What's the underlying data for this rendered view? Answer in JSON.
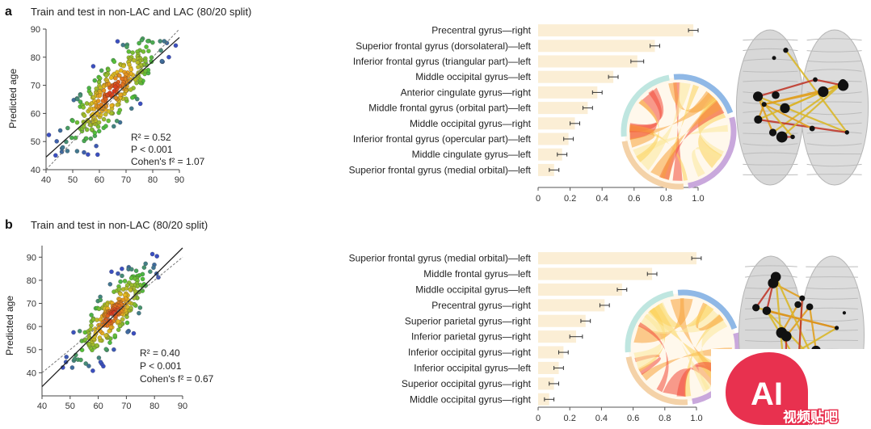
{
  "chart_data": [
    {
      "type": "scatter",
      "panel": "a",
      "title": "Train and test in non-LAC and LAC (80/20 split)",
      "ylabel": "Predicted age",
      "xlabel": "",
      "xlim": [
        40,
        90
      ],
      "ylim": [
        40,
        90
      ],
      "xticks": [
        40,
        50,
        60,
        70,
        80,
        90
      ],
      "yticks": [
        40,
        50,
        60,
        70,
        80,
        90
      ],
      "r2_label": "R² = 0.52",
      "p_label": "P < 0.001",
      "cohen_label": "Cohen's f² = 1.07",
      "fit": {
        "slope": 0.85,
        "intercept": 10.5
      },
      "n_points": 320,
      "center": [
        65,
        68
      ],
      "spread": [
        8.5,
        9.5
      ],
      "seed": 11
    },
    {
      "type": "bar",
      "panel": "a",
      "categories": [
        "Precentral gyrus—right",
        "Superior frontal gyrus (dorsolateral)—left",
        "Inferior frontal gyrus (triangular part)—left",
        "Middle occipital gyrus—left",
        "Anterior cingulate gyrus—right",
        "Middle frontal gyrus (orbital part)—left",
        "Middle occipital gyrus—right",
        "Inferior frontal gyrus (opercular part)—left",
        "Middle cingulate gyrus—left",
        "Superior frontal gyrus (medial orbital)—left"
      ],
      "values": [
        0.97,
        0.73,
        0.62,
        0.47,
        0.37,
        0.31,
        0.23,
        0.19,
        0.15,
        0.1
      ],
      "errors": [
        0.03,
        0.03,
        0.04,
        0.03,
        0.03,
        0.03,
        0.03,
        0.03,
        0.03,
        0.03
      ],
      "xlim": [
        0,
        1.0
      ],
      "xticks": [
        "0",
        "0.2",
        "0.4",
        "0.6",
        "0.8",
        "1.0"
      ]
    },
    {
      "type": "scatter",
      "panel": "b",
      "title": "Train and test in non-LAC (80/20 split)",
      "ylabel": "Predicted age",
      "xlabel": "",
      "xlim": [
        40,
        90
      ],
      "ylim": [
        30,
        95
      ],
      "xticks": [
        40,
        50,
        60,
        70,
        80,
        90
      ],
      "yticks": [
        40,
        50,
        60,
        70,
        80,
        90
      ],
      "r2_label": "R² = 0.40",
      "p_label": "P < 0.001",
      "cohen_label": "Cohen's f² = 0.67",
      "fit": {
        "slope": 1.2,
        "intercept": -14
      },
      "n_points": 260,
      "center": [
        65,
        65
      ],
      "spread": [
        6.5,
        10
      ],
      "seed": 23
    },
    {
      "type": "bar",
      "panel": "b",
      "categories": [
        "Superior frontal gyrus (medial orbital)—left",
        "Middle frontal gyrus—left",
        "Middle occipital gyrus—left",
        "Precentral gyrus—right",
        "Superior parietal gyrus—right",
        "Inferior parietal gyrus—right",
        "Inferior occipital gyrus—right",
        "Inferior occipital gyrus—left",
        "Superior occipital gyrus—right",
        "Middle occipital gyrus—right"
      ],
      "values": [
        1.0,
        0.72,
        0.53,
        0.42,
        0.3,
        0.24,
        0.16,
        0.13,
        0.1,
        0.07
      ],
      "errors": [
        0.03,
        0.03,
        0.03,
        0.03,
        0.03,
        0.04,
        0.03,
        0.03,
        0.03,
        0.03
      ],
      "xlim": [
        0,
        1.0
      ],
      "xticks": [
        "0",
        "0.2",
        "0.4",
        "0.6",
        "0.8",
        "1.0"
      ]
    }
  ],
  "chord": {
    "ring_colors": [
      "#8fb8e6",
      "#c9a8dc",
      "#f4d2a8",
      "#bfe6e0"
    ],
    "ribbon_colors": [
      "#f24a3a",
      "#f7a23a",
      "#fbd15a",
      "#fce79a"
    ]
  },
  "brain": {
    "edge_colors": [
      "#d9b72a",
      "#c0392b",
      "#e0a020"
    ],
    "node_color": "#111111"
  },
  "watermark": {
    "badge_text": "AI",
    "caption": "视频贴吧"
  },
  "colors": {
    "bar_fill": "#fbeed5",
    "scatter_low": "#3b4fc0",
    "scatter_mid": "#4fbf3a",
    "scatter_high": "#e8b820",
    "scatter_peak": "#d7261e",
    "fit_line": "#222222",
    "identity_line": "#777777",
    "watermark": "#e8314f"
  }
}
